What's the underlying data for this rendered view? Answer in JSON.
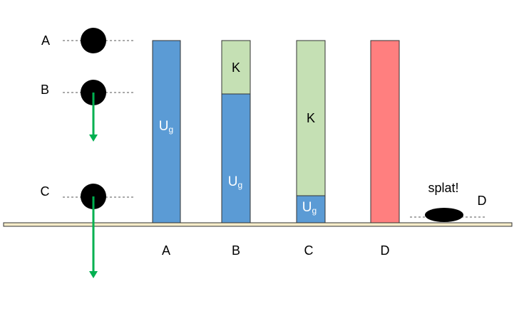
{
  "left_labels": [
    "A",
    "B",
    "C"
  ],
  "splat": {
    "text": "splat!",
    "label": "D"
  },
  "bars": [
    {
      "label": "A",
      "segments": [
        {
          "label": "U",
          "sub": "g"
        }
      ]
    },
    {
      "label": "B",
      "segments": [
        {
          "label": "K"
        },
        {
          "label": "U",
          "sub": "g"
        }
      ]
    },
    {
      "label": "C",
      "segments": [
        {
          "label": "K"
        },
        {
          "label": "U",
          "sub": "g"
        }
      ]
    },
    {
      "label": "D"
    }
  ]
}
